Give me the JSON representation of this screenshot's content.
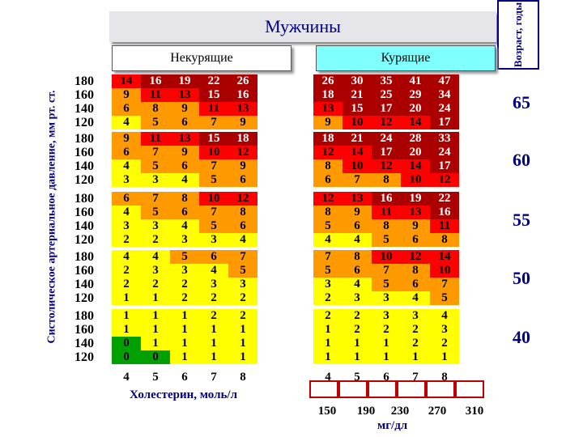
{
  "title": "Мужчины",
  "age_axis_label": "Возраст, годы",
  "nonsmokers_label": "Некурящие",
  "smokers_label": "Курящие",
  "y_axis_label": "Систолическое артериальное давление, мм рт. ст.",
  "bp_levels": [
    "180",
    "160",
    "140",
    "120"
  ],
  "ages": [
    "65",
    "60",
    "55",
    "50",
    "40"
  ],
  "cholesterol_mmol": [
    "4",
    "5",
    "6",
    "7",
    "8"
  ],
  "cholesterol_label": "Холестерин, моль/л",
  "cholesterol_mg": [
    "150",
    "190",
    "230",
    "270",
    "310"
  ],
  "mg_label": "мг/дл",
  "colors": {
    "green": "#00a000",
    "yellow": "#ffff00",
    "orange": "#ff9900",
    "red": "#ff0000",
    "maroon": "#aa0000",
    "title": "#000080"
  },
  "groups": [
    {
      "ns": [
        [
          "14",
          "16",
          "19",
          "22",
          "26"
        ],
        [
          "9",
          "11",
          "13",
          "15",
          "16"
        ],
        [
          "6",
          "8",
          "9",
          "11",
          "13"
        ],
        [
          "4",
          "5",
          "6",
          "7",
          "9"
        ]
      ],
      "s": [
        [
          "26",
          "30",
          "35",
          "41",
          "47"
        ],
        [
          "18",
          "21",
          "25",
          "29",
          "34"
        ],
        [
          "13",
          "15",
          "17",
          "20",
          "24"
        ],
        [
          "9",
          "10",
          "12",
          "14",
          "17"
        ]
      ]
    },
    {
      "ns": [
        [
          "9",
          "11",
          "13",
          "15",
          "18"
        ],
        [
          "6",
          "7",
          "9",
          "10",
          "12"
        ],
        [
          "4",
          "5",
          "6",
          "7",
          "9"
        ],
        [
          "3",
          "3",
          "4",
          "5",
          "6"
        ]
      ],
      "s": [
        [
          "18",
          "21",
          "24",
          "28",
          "33"
        ],
        [
          "12",
          "14",
          "17",
          "20",
          "24"
        ],
        [
          "8",
          "10",
          "12",
          "14",
          "17"
        ],
        [
          "6",
          "7",
          "8",
          "10",
          "12"
        ]
      ]
    },
    {
      "ns": [
        [
          "6",
          "7",
          "8",
          "10",
          "12"
        ],
        [
          "4",
          "5",
          "6",
          "7",
          "8"
        ],
        [
          "3",
          "3",
          "4",
          "5",
          "6"
        ],
        [
          "2",
          "2",
          "3",
          "3",
          "4"
        ]
      ],
      "s": [
        [
          "12",
          "13",
          "16",
          "19",
          "22"
        ],
        [
          "8",
          "9",
          "11",
          "13",
          "16"
        ],
        [
          "5",
          "6",
          "8",
          "9",
          "11"
        ],
        [
          "4",
          "4",
          "5",
          "6",
          "8"
        ]
      ]
    },
    {
      "ns": [
        [
          "4",
          "4",
          "5",
          "6",
          "7"
        ],
        [
          "2",
          "3",
          "3",
          "4",
          "5"
        ],
        [
          "2",
          "2",
          "2",
          "3",
          "3"
        ],
        [
          "1",
          "1",
          "2",
          "2",
          "2"
        ]
      ],
      "s": [
        [
          "7",
          "8",
          "10",
          "12",
          "14"
        ],
        [
          "5",
          "6",
          "7",
          "8",
          "10"
        ],
        [
          "3",
          "4",
          "5",
          "6",
          "7"
        ],
        [
          "2",
          "3",
          "3",
          "4",
          "5"
        ]
      ]
    },
    {
      "ns": [
        [
          "1",
          "1",
          "1",
          "2",
          "2"
        ],
        [
          "1",
          "1",
          "1",
          "1",
          "1"
        ],
        [
          "0",
          "1",
          "1",
          "1",
          "1"
        ],
        [
          "0",
          "0",
          "1",
          "1",
          "1"
        ]
      ],
      "s": [
        [
          "2",
          "2",
          "3",
          "3",
          "4"
        ],
        [
          "1",
          "2",
          "2",
          "2",
          "3"
        ],
        [
          "1",
          "1",
          "1",
          "2",
          "2"
        ],
        [
          "1",
          "1",
          "1",
          "1",
          "1"
        ]
      ]
    }
  ]
}
